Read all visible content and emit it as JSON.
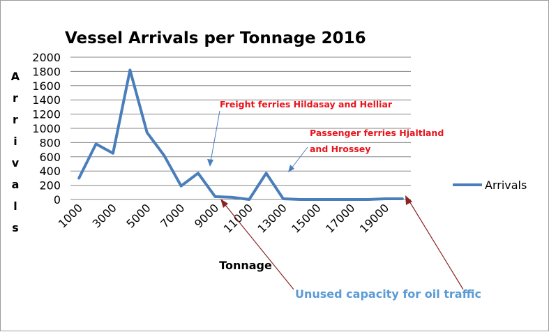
{
  "chart_data": {
    "type": "line",
    "title": "Vessel Arrivals per Tonnage 2016",
    "xlabel": "Tonnage",
    "ylabel": "Arrivals",
    "ylim": [
      0,
      2000
    ],
    "yticks": [
      "0",
      "200",
      "400",
      "600",
      "800",
      "1000",
      "1200",
      "1400",
      "1600",
      "1800",
      "2000"
    ],
    "xticks": [
      "1000",
      "3000",
      "5000",
      "7000",
      "9000",
      "11000",
      "13000",
      "15000",
      "17000",
      "19000"
    ],
    "x": [
      1000,
      2000,
      3000,
      4000,
      5000,
      6000,
      7000,
      8000,
      9000,
      10000,
      11000,
      12000,
      13000,
      14000,
      15000,
      16000,
      17000,
      18000,
      19000,
      20000
    ],
    "series": [
      {
        "name": "Arrivals",
        "color": "#4a7ebb",
        "values": [
          300,
          780,
          650,
          1820,
          940,
          620,
          190,
          370,
          40,
          30,
          0,
          370,
          10,
          0,
          0,
          0,
          0,
          0,
          10,
          10
        ]
      }
    ],
    "grid": true,
    "legend_position": "right",
    "annotations": [
      {
        "text": "Freight ferries Hildasay and Helliar",
        "color": "#e8141c"
      },
      {
        "text": "Passenger ferries Hjaltland",
        "color": "#e8141c"
      },
      {
        "text": "and Hrossey",
        "color": "#e8141c"
      },
      {
        "text": "Unused capacity for oil traffic",
        "color": "#5b9bd5"
      }
    ]
  }
}
